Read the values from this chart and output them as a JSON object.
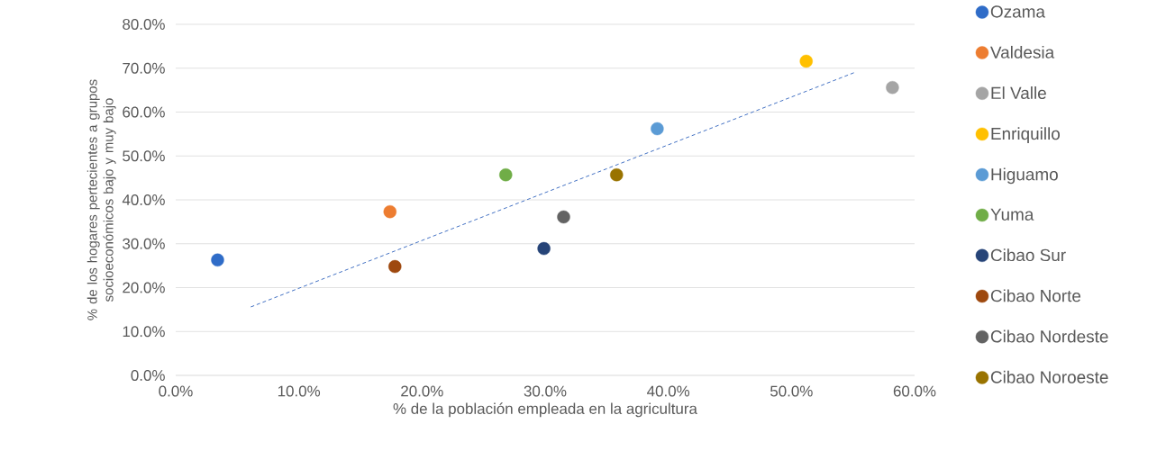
{
  "chart_data": {
    "type": "scatter",
    "xlabel": "% de la población empleada en la agricultura",
    "ylabel": "% de los hogares pertecientes a grupos socioeconómicos bajo y muy bajo",
    "xlim": [
      0,
      60
    ],
    "ylim": [
      0,
      80
    ],
    "xticks": [
      {
        "value": 0,
        "label": "0.0%"
      },
      {
        "value": 10,
        "label": "10.0%"
      },
      {
        "value": 20,
        "label": "20.0%"
      },
      {
        "value": 30,
        "label": "30.0%"
      },
      {
        "value": 40,
        "label": "40.0%"
      },
      {
        "value": 50,
        "label": "50.0%"
      },
      {
        "value": 60,
        "label": "60.0%"
      }
    ],
    "yticks": [
      {
        "value": 0,
        "label": "0.0%"
      },
      {
        "value": 10,
        "label": "10.0%"
      },
      {
        "value": 20,
        "label": "20.0%"
      },
      {
        "value": 30,
        "label": "30.0%"
      },
      {
        "value": 40,
        "label": "40.0%"
      },
      {
        "value": 50,
        "label": "50.0%"
      },
      {
        "value": 60,
        "label": "60.0%"
      },
      {
        "value": 70,
        "label": "70.0%"
      },
      {
        "value": 80,
        "label": "80.0%"
      }
    ],
    "grid": "y",
    "legend": "right",
    "marker": "circle",
    "series": [
      {
        "name": "Ozama",
        "color": "#2f6cc8",
        "x": [
          3.4
        ],
        "values": [
          26.3
        ]
      },
      {
        "name": "Valdesia",
        "color": "#ed7d31",
        "x": [
          17.4
        ],
        "values": [
          37.3
        ]
      },
      {
        "name": "El Valle",
        "color": "#a5a5a5",
        "x": [
          58.2
        ],
        "values": [
          65.6
        ]
      },
      {
        "name": "Enriquillo",
        "color": "#ffc000",
        "x": [
          51.2
        ],
        "values": [
          71.6
        ]
      },
      {
        "name": "Higuamo",
        "color": "#5b9bd5",
        "x": [
          39.1
        ],
        "values": [
          56.2
        ]
      },
      {
        "name": "Yuma",
        "color": "#70ad47",
        "x": [
          26.8
        ],
        "values": [
          45.7
        ]
      },
      {
        "name": "Cibao Sur",
        "color": "#264478",
        "x": [
          29.9
        ],
        "values": [
          28.9
        ]
      },
      {
        "name": "Cibao Norte",
        "color": "#9e480e",
        "x": [
          17.8
        ],
        "values": [
          24.8
        ]
      },
      {
        "name": "Cibao Nordeste",
        "color": "#636363",
        "x": [
          31.5
        ],
        "values": [
          36.1
        ]
      },
      {
        "name": "Cibao Noroeste",
        "color": "#997300",
        "x": [
          35.8
        ],
        "values": [
          45.7
        ]
      },
      {
        "type": "line",
        "color": "#4472c4",
        "x": [
          6.1,
          55.2
        ],
        "values": [
          15.6,
          69.1
        ],
        "marker": "none",
        "line_style": "dashed"
      }
    ]
  }
}
